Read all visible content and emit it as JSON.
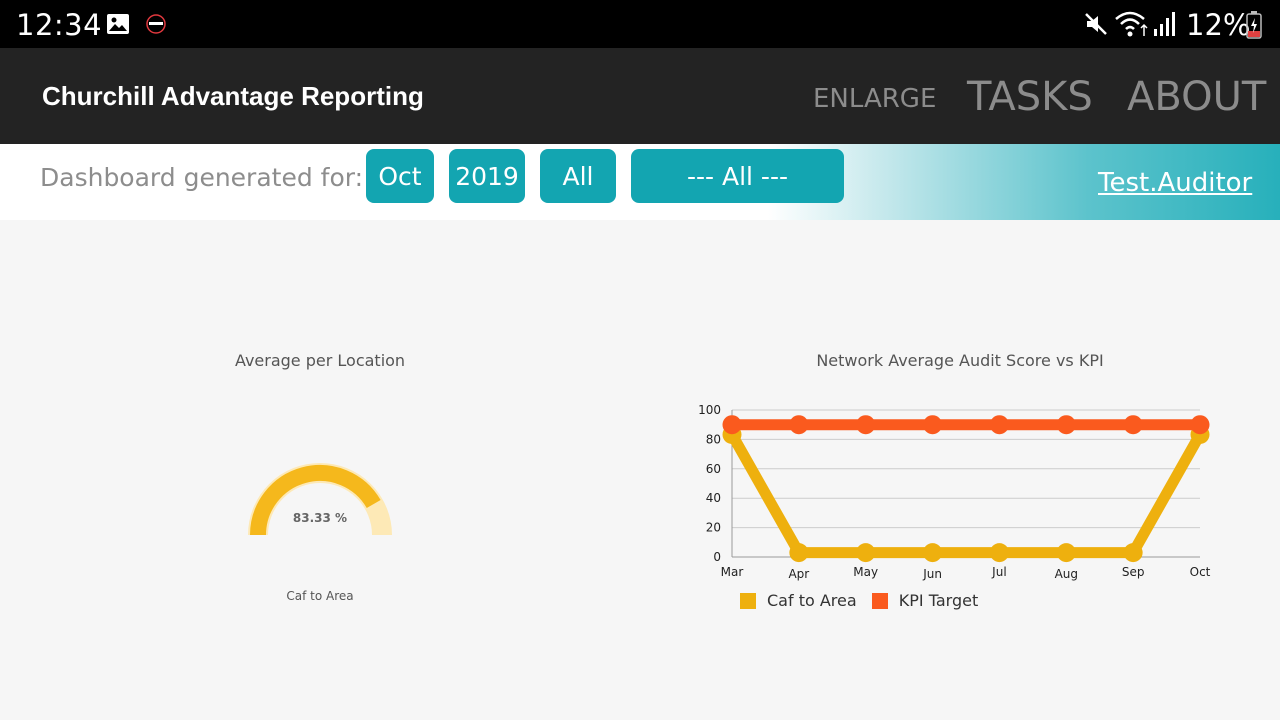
{
  "status": {
    "time": "12:34",
    "battery": "12%"
  },
  "app": {
    "title": "Churchill Advantage Reporting"
  },
  "menu": {
    "enlarge": "ENLARGE",
    "tasks": "TASKS",
    "about": "ABOUT"
  },
  "filters": {
    "label": "Dashboard generated for:",
    "month": "Oct",
    "year": "2019",
    "scope": "All",
    "location": "--- All ---",
    "user": "Test.Auditor"
  },
  "colors": {
    "gauge": "#f5b81c",
    "gauge_bg": "#fde9b6",
    "series_area": "#eeb00e",
    "series_kpi": "#fa5a1e",
    "chip": "#13a5b1"
  },
  "gauge": {
    "title": "Average per Location",
    "value_text": "83.33 %",
    "value": 83.33,
    "label": "Caf to Area"
  },
  "chart_data": {
    "type": "line",
    "title": "Network Average Audit Score vs KPI",
    "categories": [
      "Mar",
      "Apr",
      "May",
      "Jun",
      "Jul",
      "Aug",
      "Sep",
      "Oct"
    ],
    "ylim": [
      0,
      100
    ],
    "yticks": [
      0,
      20,
      40,
      60,
      80,
      100
    ],
    "grid": true,
    "legend_position": "bottom-left",
    "series": [
      {
        "name": "Caf to Area",
        "values": [
          83.33,
          3,
          3,
          3,
          3,
          3,
          3,
          83.33
        ],
        "color": "#eeb00e"
      },
      {
        "name": "KPI Target",
        "values": [
          90,
          90,
          90,
          90,
          90,
          90,
          90,
          90
        ],
        "color": "#fa5a1e"
      }
    ]
  }
}
